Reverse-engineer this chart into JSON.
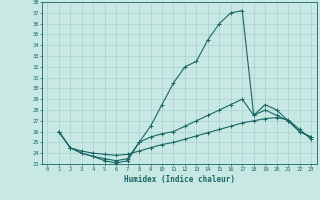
{
  "xlabel": "Humidex (Indice chaleur)",
  "bg_color": "#c8e8e4",
  "grid_color": "#a0cccc",
  "line_color": "#1a6666",
  "xlim": [
    -0.5,
    23.5
  ],
  "ylim": [
    23,
    38
  ],
  "xticks": [
    0,
    1,
    2,
    3,
    4,
    5,
    6,
    7,
    8,
    9,
    10,
    11,
    12,
    13,
    14,
    15,
    16,
    17,
    18,
    19,
    20,
    21,
    22,
    23
  ],
  "yticks": [
    23,
    24,
    25,
    26,
    27,
    28,
    29,
    30,
    31,
    32,
    33,
    34,
    35,
    36,
    37,
    38
  ],
  "series": [
    {
      "x": [
        1,
        2,
        3,
        4,
        5,
        6,
        7,
        8,
        9,
        10,
        11,
        12,
        13,
        14,
        15,
        16,
        17,
        18,
        19,
        20,
        21,
        22,
        23
      ],
      "y": [
        26.0,
        24.5,
        24.0,
        23.7,
        23.3,
        23.1,
        23.3,
        25.0,
        26.5,
        28.5,
        30.5,
        32.0,
        32.5,
        34.5,
        36.0,
        37.0,
        37.2,
        27.5,
        28.5,
        28.0,
        27.0,
        26.0,
        25.5
      ]
    },
    {
      "x": [
        1,
        2,
        3,
        4,
        5,
        6,
        7,
        8,
        9,
        10,
        11,
        12,
        13,
        14,
        15,
        16,
        17,
        18,
        19,
        20,
        21,
        22,
        23
      ],
      "y": [
        26.0,
        24.5,
        24.0,
        23.7,
        23.5,
        23.3,
        23.5,
        25.0,
        25.5,
        25.8,
        26.0,
        26.5,
        27.0,
        27.5,
        28.0,
        28.5,
        29.0,
        27.5,
        28.0,
        27.5,
        27.0,
        26.0,
        25.5
      ]
    },
    {
      "x": [
        1,
        2,
        3,
        4,
        5,
        6,
        7,
        8,
        9,
        10,
        11,
        12,
        13,
        14,
        15,
        16,
        17,
        18,
        19,
        20,
        21,
        22,
        23
      ],
      "y": [
        26.0,
        24.5,
        24.2,
        24.0,
        23.9,
        23.8,
        23.9,
        24.2,
        24.5,
        24.8,
        25.0,
        25.3,
        25.6,
        25.9,
        26.2,
        26.5,
        26.8,
        27.0,
        27.2,
        27.3,
        27.1,
        26.2,
        25.3
      ]
    }
  ]
}
